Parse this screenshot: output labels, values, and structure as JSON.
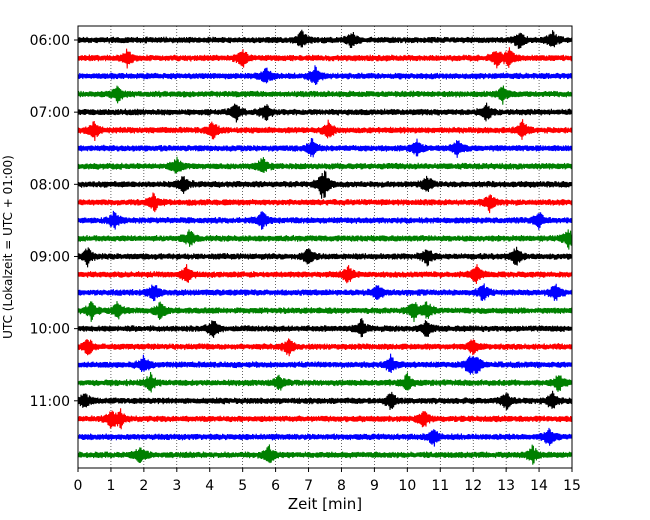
{
  "chart_data": {
    "type": "line",
    "subtype": "helicorder-seismogram",
    "xlabel": "Zeit  [min]",
    "ylabel": "UTC (Lokalzeit = UTC + 01:00)",
    "xlim": [
      0,
      15
    ],
    "x_ticks": [
      "0",
      "1",
      "2",
      "3",
      "4",
      "5",
      "6",
      "7",
      "8",
      "9",
      "10",
      "11",
      "12",
      "13",
      "14",
      "15"
    ],
    "grid": "vertical dotted lines at each minute",
    "y_tick_labels": [
      {
        "label": "06:00",
        "row": 0
      },
      {
        "label": "07:00",
        "row": 4
      },
      {
        "label": "08:00",
        "row": 8
      },
      {
        "label": "09:00",
        "row": 12
      },
      {
        "label": "10:00",
        "row": 16
      },
      {
        "label": "11:00",
        "row": 20
      }
    ],
    "trace_row_minutes": 15,
    "color_cycle": [
      "#000000",
      "#ff0000",
      "#0000ff",
      "#008000"
    ],
    "rows": [
      {
        "start": "06:00",
        "color": "#000000",
        "events_min": [
          6.8,
          8.3,
          13.4,
          14.4
        ]
      },
      {
        "start": "06:15",
        "color": "#ff0000",
        "events_min": [
          1.5,
          5.0,
          12.7,
          13.1
        ]
      },
      {
        "start": "06:30",
        "color": "#0000ff",
        "events_min": [
          5.7,
          7.2
        ]
      },
      {
        "start": "06:45",
        "color": "#008000",
        "events_min": [
          1.2,
          12.9
        ]
      },
      {
        "start": "07:00",
        "color": "#000000",
        "events_min": [
          4.8,
          5.7,
          12.4
        ]
      },
      {
        "start": "07:15",
        "color": "#ff0000",
        "events_min": [
          0.5,
          4.1,
          7.6,
          13.5
        ]
      },
      {
        "start": "07:30",
        "color": "#0000ff",
        "events_min": [
          7.1,
          10.3,
          11.5
        ]
      },
      {
        "start": "07:45",
        "color": "#008000",
        "events_min": [
          3.0,
          5.6
        ]
      },
      {
        "start": "08:00",
        "color": "#000000",
        "events_min": [
          3.2,
          7.4,
          7.5,
          10.6
        ]
      },
      {
        "start": "08:15",
        "color": "#ff0000",
        "events_min": [
          2.3,
          12.5
        ]
      },
      {
        "start": "08:30",
        "color": "#0000ff",
        "events_min": [
          1.1,
          5.6,
          14.0
        ]
      },
      {
        "start": "08:45",
        "color": "#008000",
        "events_min": [
          3.4,
          14.9
        ]
      },
      {
        "start": "09:00",
        "color": "#000000",
        "events_min": [
          0.3,
          7.0,
          10.6,
          13.3
        ]
      },
      {
        "start": "09:15",
        "color": "#ff0000",
        "events_min": [
          3.3,
          8.2,
          12.1
        ]
      },
      {
        "start": "09:30",
        "color": "#0000ff",
        "events_min": [
          2.3,
          9.1,
          12.3,
          14.5
        ]
      },
      {
        "start": "09:45",
        "color": "#008000",
        "events_min": [
          0.4,
          1.2,
          2.5,
          10.2,
          10.6
        ]
      },
      {
        "start": "10:00",
        "color": "#000000",
        "events_min": [
          4.1,
          8.6,
          10.6
        ]
      },
      {
        "start": "10:15",
        "color": "#ff0000",
        "events_min": [
          0.3,
          6.4,
          12.0
        ]
      },
      {
        "start": "10:30",
        "color": "#0000ff",
        "events_min": [
          2.0,
          9.5,
          11.9,
          12.1
        ]
      },
      {
        "start": "10:45",
        "color": "#008000",
        "events_min": [
          2.2,
          6.1,
          10.0,
          14.6
        ]
      },
      {
        "start": "11:00",
        "color": "#000000",
        "events_min": [
          0.2,
          9.5,
          13.0,
          14.4
        ]
      },
      {
        "start": "11:15",
        "color": "#ff0000",
        "events_min": [
          1.0,
          1.3,
          10.5
        ]
      },
      {
        "start": "11:30",
        "color": "#0000ff",
        "events_min": [
          10.8,
          14.3
        ]
      },
      {
        "start": "11:45",
        "color": "#008000",
        "events_min": [
          1.9,
          5.8,
          13.8
        ]
      }
    ]
  }
}
